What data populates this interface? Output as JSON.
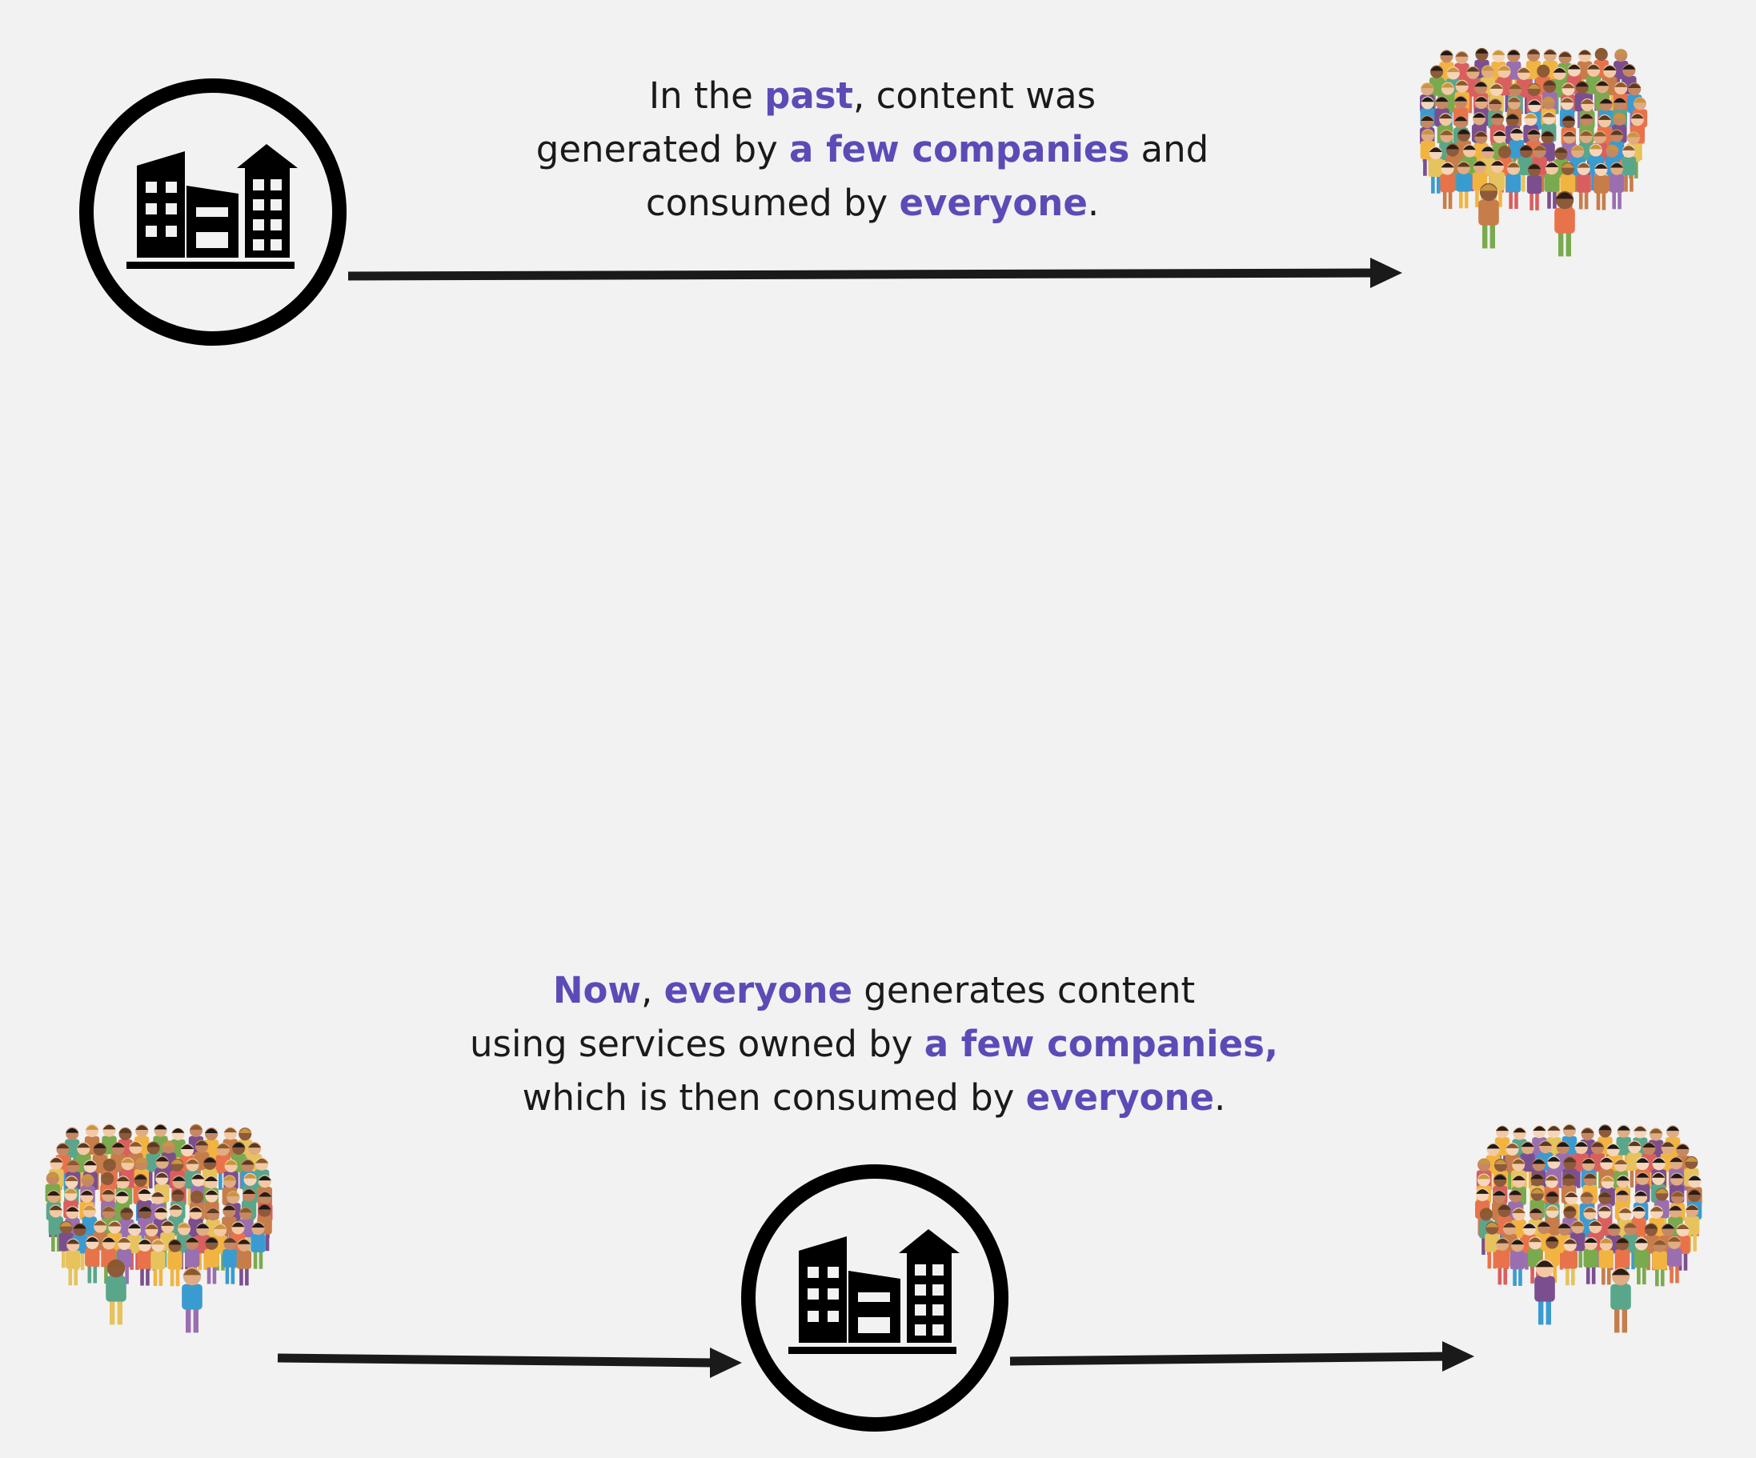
{
  "colors": {
    "background": "#f2f2f2",
    "text": "#1a1a1a",
    "highlight": "#5b4bb7",
    "icon": "#000000",
    "arrow": "#1a1a1a",
    "crowd_palette": [
      "#e8734a",
      "#f2b441",
      "#7aaa4e",
      "#3a9bd1",
      "#7b4f8f",
      "#d95f5f",
      "#e6c35c",
      "#c77d4a",
      "#5aa68a",
      "#9a6fb0"
    ]
  },
  "icons": {
    "company": "building-icon",
    "crowd": "crowd-icon",
    "arrow": "arrow-right-icon"
  },
  "past": {
    "line1": {
      "t1": "In the ",
      "h1": "past",
      "t2": ", content was"
    },
    "line2": {
      "t1": "generated by ",
      "h1": "a few companies",
      "t2": " and"
    },
    "line3": {
      "t1": "consumed by ",
      "h1": "everyone",
      "t2": "."
    }
  },
  "now": {
    "line1": {
      "h1": "Now",
      "t1": ", ",
      "h2": "everyone",
      "t2": " generates content"
    },
    "line2": {
      "t1": "using services owned by ",
      "h1": "a few companies,"
    },
    "line3": {
      "t1": "which is then consumed by ",
      "h1": "everyone",
      "t2": "."
    }
  }
}
